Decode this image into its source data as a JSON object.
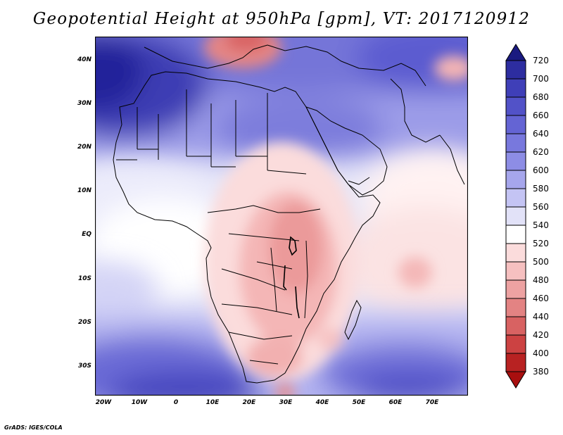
{
  "title": "Geopotential Height at 950hPa [gpm], VT: 2017120912",
  "credit": "GrADS: IGES/COLA",
  "map": {
    "lat_ticks": [
      "40N",
      "30N",
      "20N",
      "10N",
      "EQ",
      "10S",
      "20S",
      "30S"
    ],
    "lon_ticks": [
      "20W",
      "10W",
      "0",
      "10E",
      "20E",
      "30E",
      "40E",
      "50E",
      "60E",
      "70E"
    ],
    "lat_range": [
      -36.5,
      44.5
    ],
    "lon_range": [
      -22,
      80
    ]
  },
  "legend": {
    "levels": [
      "720",
      "700",
      "680",
      "660",
      "640",
      "620",
      "600",
      "580",
      "560",
      "540",
      "520",
      "500",
      "480",
      "460",
      "440",
      "420",
      "400",
      "380"
    ],
    "colors": [
      "#1a1a80",
      "#2d2da0",
      "#3f3fb8",
      "#5252c8",
      "#6464d4",
      "#7878dd",
      "#8d8de5",
      "#a6a6ec",
      "#c4c4f4",
      "#e2e2f8",
      "#ffffff",
      "#fbdcdc",
      "#f6c0c0",
      "#eda2a2",
      "#e38383",
      "#d86262",
      "#cc4242",
      "#b82222",
      "#a80f0f"
    ]
  }
}
